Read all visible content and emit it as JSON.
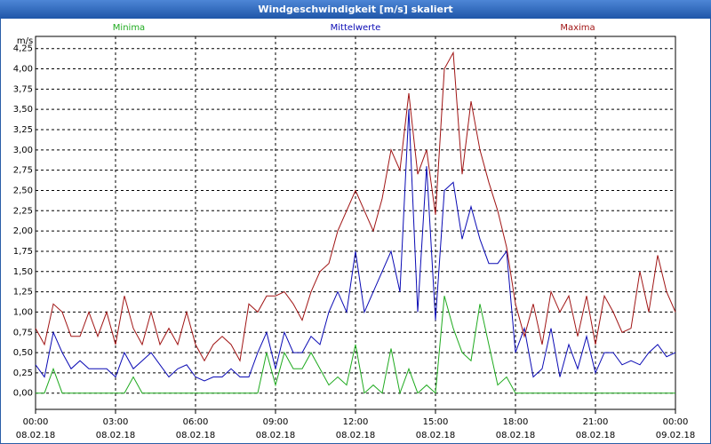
{
  "chart_data": {
    "type": "line",
    "title": "Windgeschwindigkeit [m/s] skaliert",
    "ylabel": "m/s",
    "x": [
      0,
      20,
      40,
      60,
      80,
      100,
      120,
      140,
      160,
      180,
      200,
      220,
      240,
      260,
      280,
      300,
      320,
      340,
      360,
      380,
      400,
      420,
      440,
      460,
      480,
      500,
      520,
      540,
      560,
      580,
      600,
      620,
      640,
      660,
      680,
      700,
      720,
      740,
      760,
      780,
      800,
      820,
      840,
      860,
      880,
      900,
      920,
      940,
      960,
      980,
      1000,
      1020,
      1040,
      1060,
      1080,
      1100,
      1120,
      1140,
      1160,
      1180,
      1200,
      1220,
      1240,
      1260,
      1280,
      1300,
      1320,
      1340,
      1360,
      1380,
      1400,
      1420,
      1440
    ],
    "xlim": [
      0,
      1440
    ],
    "xticks": [
      {
        "value": 0,
        "label": "00:00"
      },
      {
        "value": 180,
        "label": "03:00"
      },
      {
        "value": 360,
        "label": "06:00"
      },
      {
        "value": 540,
        "label": "09:00"
      },
      {
        "value": 720,
        "label": "12:00"
      },
      {
        "value": 900,
        "label": "15:00"
      },
      {
        "value": 1080,
        "label": "18:00"
      },
      {
        "value": 1260,
        "label": "21:00"
      },
      {
        "value": 1440,
        "label": "00:00"
      }
    ],
    "xtick_dates": [
      "08.02.18",
      "08.02.18",
      "08.02.18",
      "08.02.18",
      "08.02.18",
      "08.02.18",
      "08.02.18",
      "08.02.18",
      "09.02.18"
    ],
    "ylim": [
      -0.2,
      4.4
    ],
    "yticks": [
      {
        "value": 0,
        "label": "0,00"
      },
      {
        "value": 0.25,
        "label": "0,25"
      },
      {
        "value": 0.5,
        "label": "0,50"
      },
      {
        "value": 0.75,
        "label": "0,75"
      },
      {
        "value": 1,
        "label": "1,00"
      },
      {
        "value": 1.25,
        "label": "1,25"
      },
      {
        "value": 1.5,
        "label": "1,50"
      },
      {
        "value": 1.75,
        "label": "1,75"
      },
      {
        "value": 2,
        "label": "2,00"
      },
      {
        "value": 2.25,
        "label": "2,25"
      },
      {
        "value": 2.5,
        "label": "2,50"
      },
      {
        "value": 2.75,
        "label": "2,75"
      },
      {
        "value": 3,
        "label": "3,00"
      },
      {
        "value": 3.25,
        "label": "3,25"
      },
      {
        "value": 3.5,
        "label": "3,50"
      },
      {
        "value": 3.75,
        "label": "3,75"
      },
      {
        "value": 4,
        "label": "4,00"
      },
      {
        "value": 4.25,
        "label": "4,25"
      }
    ],
    "grid": true,
    "series": [
      {
        "name": "Minima",
        "color": "#1faa1f",
        "values": [
          0,
          0,
          0.3,
          0,
          0,
          0,
          0,
          0,
          0,
          0,
          0,
          0.2,
          0,
          0,
          0,
          0,
          0,
          0,
          0,
          0,
          0,
          0,
          0,
          0,
          0,
          0,
          0.5,
          0.1,
          0.5,
          0.3,
          0.3,
          0.5,
          0.3,
          0.1,
          0.2,
          0.1,
          0.6,
          0,
          0.1,
          0,
          0.55,
          0,
          0.3,
          0,
          0.1,
          0,
          1.2,
          0.8,
          0.5,
          0.4,
          1.1,
          0.6,
          0.1,
          0.2,
          0,
          0,
          0,
          0,
          0,
          0,
          0,
          0,
          0,
          0,
          0,
          0,
          0,
          0,
          0,
          0,
          0,
          0,
          0
        ]
      },
      {
        "name": "Mittelwerte",
        "color": "#0a0ab4",
        "values": [
          0.35,
          0.2,
          0.75,
          0.5,
          0.3,
          0.4,
          0.3,
          0.3,
          0.3,
          0.2,
          0.5,
          0.3,
          0.4,
          0.5,
          0.35,
          0.2,
          0.3,
          0.35,
          0.2,
          0.15,
          0.2,
          0.2,
          0.3,
          0.2,
          0.2,
          0.5,
          0.75,
          0.3,
          0.75,
          0.5,
          0.5,
          0.7,
          0.6,
          1.0,
          1.25,
          1.0,
          1.75,
          1.0,
          1.25,
          1.5,
          1.75,
          1.25,
          3.5,
          1.0,
          2.8,
          0.9,
          2.5,
          2.6,
          1.9,
          2.3,
          1.9,
          1.6,
          1.6,
          1.75,
          0.5,
          0.8,
          0.2,
          0.3,
          0.8,
          0.2,
          0.6,
          0.3,
          0.7,
          0.25,
          0.5,
          0.5,
          0.35,
          0.4,
          0.35,
          0.5,
          0.6,
          0.45,
          0.5
        ]
      },
      {
        "name": "Maxima",
        "color": "#a01414",
        "values": [
          0.8,
          0.6,
          1.1,
          1.0,
          0.7,
          0.7,
          1.0,
          0.7,
          1.0,
          0.6,
          1.2,
          0.8,
          0.6,
          1.0,
          0.6,
          0.8,
          0.6,
          1.0,
          0.6,
          0.4,
          0.6,
          0.7,
          0.6,
          0.4,
          1.1,
          1.0,
          1.2,
          1.2,
          1.25,
          1.1,
          0.9,
          1.25,
          1.5,
          1.6,
          2.0,
          2.25,
          2.5,
          2.25,
          2.0,
          2.4,
          3.0,
          2.75,
          3.7,
          2.7,
          3.0,
          2.2,
          4.0,
          4.2,
          2.7,
          3.6,
          3.0,
          2.6,
          2.25,
          1.8,
          1.1,
          0.7,
          1.1,
          0.6,
          1.25,
          1.0,
          1.2,
          0.7,
          1.2,
          0.6,
          1.2,
          1.0,
          0.75,
          0.8,
          1.5,
          1.0,
          1.7,
          1.25,
          1.0
        ]
      }
    ]
  }
}
